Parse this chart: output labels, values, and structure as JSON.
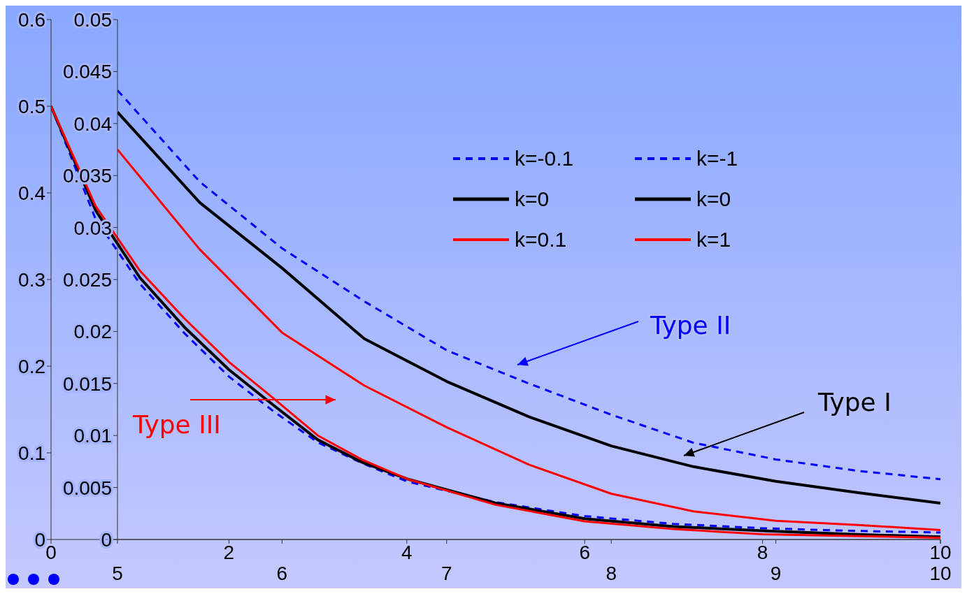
{
  "chart_data": [
    {
      "type": "line",
      "xlim": [
        5,
        10
      ],
      "xticks": [
        5,
        6,
        7,
        8,
        9,
        10
      ],
      "ylim": [
        0,
        0.05
      ],
      "yticks": [
        0,
        0.005,
        0.01,
        0.015,
        0.02,
        0.025,
        0.03,
        0.035,
        0.04,
        0.045,
        0.05
      ],
      "legend": "top",
      "x": [
        5,
        5.5,
        6,
        6.5,
        7,
        7.5,
        8,
        8.5,
        9,
        9.5,
        10
      ],
      "series": [
        {
          "name": "k=-0.1",
          "color": "#0000ff",
          "line_style": "dashed",
          "values": [
            0.0432,
            0.0344,
            0.028,
            0.0229,
            0.0182,
            0.015,
            0.012,
            0.0093,
            0.0077,
            0.0066,
            0.0058
          ]
        },
        {
          "name": "k=0",
          "color": "#000000",
          "values": [
            0.0411,
            0.0324,
            0.0261,
            0.0193,
            0.0152,
            0.0118,
            0.009,
            0.007,
            0.0056,
            0.0045,
            0.0035
          ]
        },
        {
          "name": "k=0.1",
          "color": "#ff0000",
          "values": [
            0.0375,
            0.0279,
            0.0199,
            0.0148,
            0.0108,
            0.0072,
            0.0044,
            0.0027,
            0.0018,
            0.0014,
            0.0009
          ]
        }
      ],
      "annotations": [
        "Type II",
        "Type I",
        "Type III"
      ]
    },
    {
      "type": "line",
      "xlim": [
        0,
        10
      ],
      "xticks": [
        0,
        2,
        4,
        6,
        8,
        10
      ],
      "ylim": [
        0,
        0.6
      ],
      "yticks": [
        0,
        0.1,
        0.2,
        0.3,
        0.4,
        0.5,
        0.6
      ],
      "legend": "top",
      "x": [
        0,
        0.5,
        1,
        1.5,
        2,
        2.5,
        3,
        3.5,
        4,
        5,
        6,
        7,
        8,
        9,
        10
      ],
      "series": [
        {
          "name": "k=-1",
          "color": "#0000ff",
          "line_style": "dashed",
          "values": [
            0.5,
            0.37,
            0.295,
            0.238,
            0.188,
            0.148,
            0.112,
            0.088,
            0.067,
            0.043,
            0.027,
            0.018,
            0.013,
            0.01,
            0.008
          ]
        },
        {
          "name": "k=0",
          "color": "#000000",
          "values": [
            0.5,
            0.38,
            0.302,
            0.245,
            0.196,
            0.155,
            0.115,
            0.089,
            0.07,
            0.042,
            0.024,
            0.015,
            0.01,
            0.006,
            0.003
          ]
        },
        {
          "name": "k=1",
          "color": "#ff0000",
          "values": [
            0.5,
            0.385,
            0.31,
            0.255,
            0.205,
            0.163,
            0.12,
            0.092,
            0.07,
            0.04,
            0.021,
            0.012,
            0.006,
            0.004,
            0.002
          ]
        }
      ]
    }
  ]
}
